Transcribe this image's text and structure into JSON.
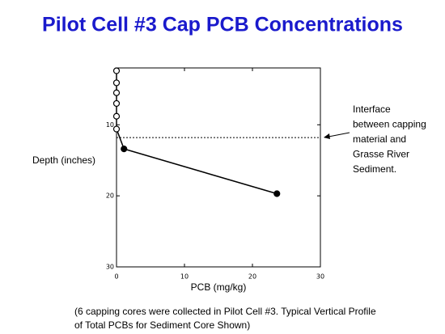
{
  "chart_data": {
    "type": "line",
    "title": "Pilot Cell #3 Cap PCB Concentrations",
    "x_label": "PCB (mg/kg)",
    "y_label": "Depth (inches)",
    "annotation": [
      "Interface",
      "between capping",
      "material and",
      "Grasse River",
      "Sediment."
    ],
    "footnote": [
      "(6 capping cores were collected in Pilot Cell #3. Typical Vertical Profile",
      "of Total PCBs for Sediment Core Shown)"
    ],
    "x": [
      0,
      0,
      0,
      0,
      0,
      0,
      1.1,
      23.6
    ],
    "y": [
      2.4,
      4.1,
      5.5,
      7.0,
      8.8,
      10.6,
      13.4,
      19.7
    ],
    "markers": [
      "open",
      "open",
      "open",
      "open",
      "open",
      "open",
      "filled",
      "filled"
    ],
    "color": "#000000",
    "interface_depth": 11.8,
    "xlim": [
      0,
      30
    ],
    "xticks": [
      0,
      10,
      20,
      30
    ],
    "ylim": [
      2,
      30
    ],
    "yticks": [
      10,
      20,
      30
    ],
    "y_inverted": true
  }
}
